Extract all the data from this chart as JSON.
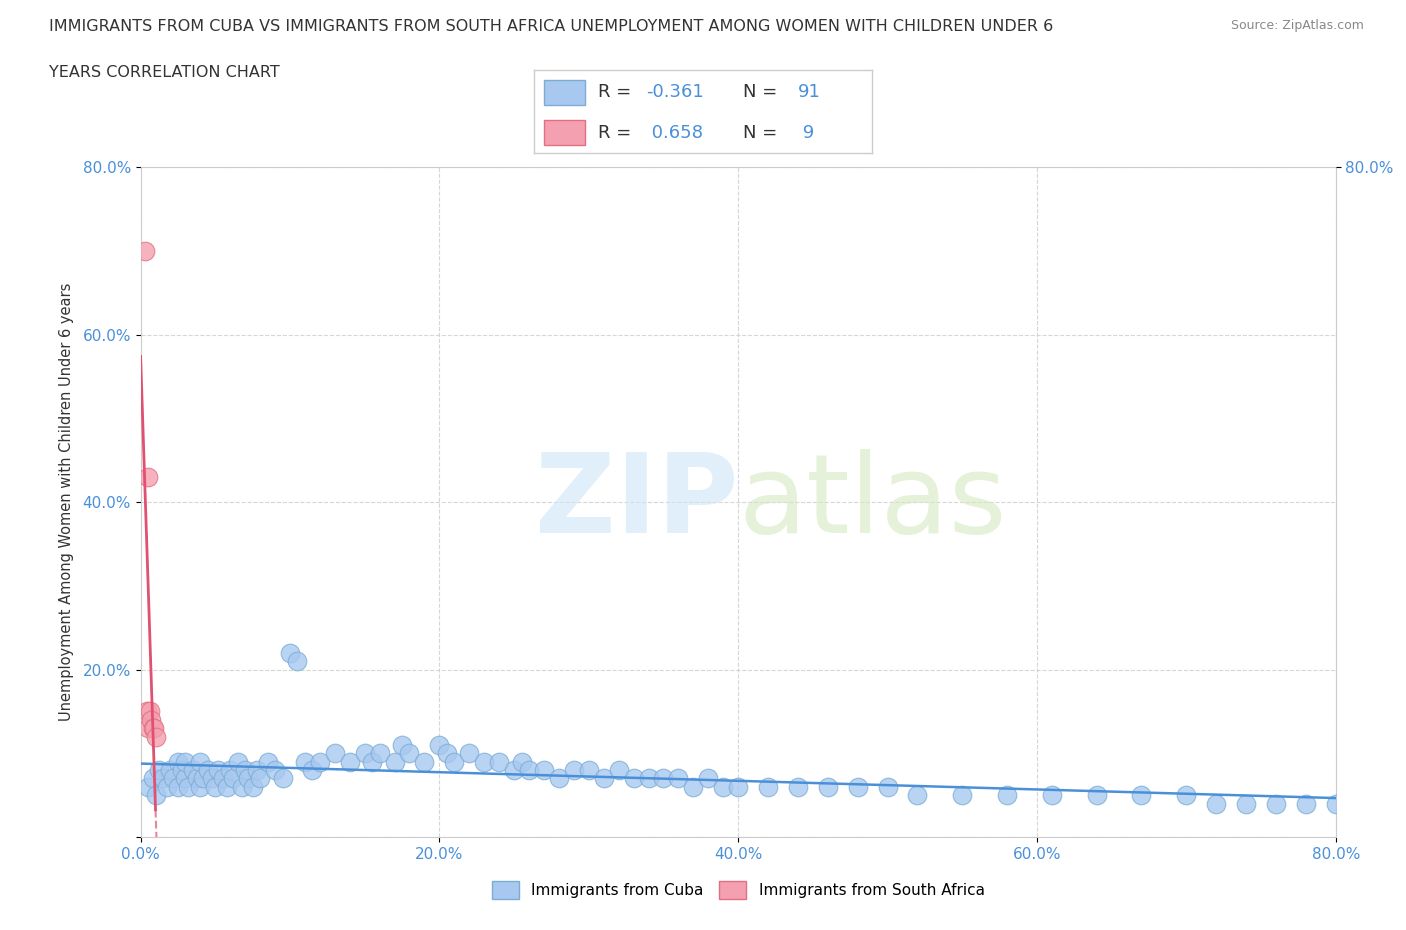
{
  "title_line1": "IMMIGRANTS FROM CUBA VS IMMIGRANTS FROM SOUTH AFRICA UNEMPLOYMENT AMONG WOMEN WITH CHILDREN UNDER 6",
  "title_line2": "YEARS CORRELATION CHART",
  "source": "Source: ZipAtlas.com",
  "ylabel": "Unemployment Among Women with Children Under 6 years",
  "xlim": [
    0,
    0.8
  ],
  "ylim": [
    0,
    0.8
  ],
  "xticks": [
    0.0,
    0.2,
    0.4,
    0.6,
    0.8
  ],
  "yticks": [
    0.0,
    0.2,
    0.4,
    0.6,
    0.8
  ],
  "xtick_labels": [
    "0.0%",
    "20.0%",
    "40.0%",
    "60.0%",
    "80.0%"
  ],
  "ytick_labels": [
    "",
    "20.0%",
    "40.0%",
    "60.0%",
    "80.0%"
  ],
  "right_ytick_labels": [
    "80.0%"
  ],
  "cuba_color": "#a8c8f0",
  "cuba_edge": "#7aadd4",
  "sa_color": "#f4a0b0",
  "sa_edge": "#e07080",
  "cuba_R": -0.361,
  "cuba_N": 91,
  "sa_R": 0.658,
  "sa_N": 9,
  "background_color": "#ffffff",
  "grid_color": "#cccccc",
  "trend_blue": "#4a90d9",
  "trend_pink": "#e05070",
  "tick_color": "#4a90d9",
  "label_color": "#333333",
  "source_color": "#888888",
  "cuba_scatter_x": [
    0.005,
    0.008,
    0.01,
    0.012,
    0.015,
    0.018,
    0.02,
    0.022,
    0.025,
    0.025,
    0.028,
    0.03,
    0.03,
    0.032,
    0.035,
    0.038,
    0.04,
    0.04,
    0.042,
    0.045,
    0.048,
    0.05,
    0.052,
    0.055,
    0.058,
    0.06,
    0.062,
    0.065,
    0.068,
    0.07,
    0.072,
    0.075,
    0.078,
    0.08,
    0.085,
    0.09,
    0.095,
    0.1,
    0.105,
    0.11,
    0.115,
    0.12,
    0.13,
    0.14,
    0.15,
    0.155,
    0.16,
    0.17,
    0.175,
    0.18,
    0.19,
    0.2,
    0.205,
    0.21,
    0.22,
    0.23,
    0.24,
    0.25,
    0.255,
    0.26,
    0.27,
    0.28,
    0.29,
    0.3,
    0.31,
    0.32,
    0.33,
    0.34,
    0.35,
    0.36,
    0.37,
    0.38,
    0.39,
    0.4,
    0.42,
    0.44,
    0.46,
    0.48,
    0.5,
    0.52,
    0.55,
    0.58,
    0.61,
    0.64,
    0.67,
    0.7,
    0.72,
    0.74,
    0.76,
    0.78,
    0.8
  ],
  "cuba_scatter_y": [
    0.06,
    0.07,
    0.05,
    0.08,
    0.07,
    0.06,
    0.08,
    0.07,
    0.09,
    0.06,
    0.08,
    0.07,
    0.09,
    0.06,
    0.08,
    0.07,
    0.06,
    0.09,
    0.07,
    0.08,
    0.07,
    0.06,
    0.08,
    0.07,
    0.06,
    0.08,
    0.07,
    0.09,
    0.06,
    0.08,
    0.07,
    0.06,
    0.08,
    0.07,
    0.09,
    0.08,
    0.07,
    0.22,
    0.21,
    0.09,
    0.08,
    0.09,
    0.1,
    0.09,
    0.1,
    0.09,
    0.1,
    0.09,
    0.11,
    0.1,
    0.09,
    0.11,
    0.1,
    0.09,
    0.1,
    0.09,
    0.09,
    0.08,
    0.09,
    0.08,
    0.08,
    0.07,
    0.08,
    0.08,
    0.07,
    0.08,
    0.07,
    0.07,
    0.07,
    0.07,
    0.06,
    0.07,
    0.06,
    0.06,
    0.06,
    0.06,
    0.06,
    0.06,
    0.06,
    0.05,
    0.05,
    0.05,
    0.05,
    0.05,
    0.05,
    0.05,
    0.04,
    0.04,
    0.04,
    0.04,
    0.04
  ],
  "sa_scatter_x": [
    0.003,
    0.004,
    0.005,
    0.005,
    0.006,
    0.007,
    0.008,
    0.009,
    0.01
  ],
  "sa_scatter_y": [
    0.7,
    0.15,
    0.43,
    0.13,
    0.15,
    0.14,
    0.13,
    0.13,
    0.12
  ],
  "sa_trend_x0": 0.0,
  "sa_trend_x1": 0.01,
  "sa_trend_dash_x0": 0.01,
  "sa_trend_dash_x1": 0.038,
  "legend_bottom_items": [
    "Immigrants from Cuba",
    "Immigrants from South Africa"
  ]
}
